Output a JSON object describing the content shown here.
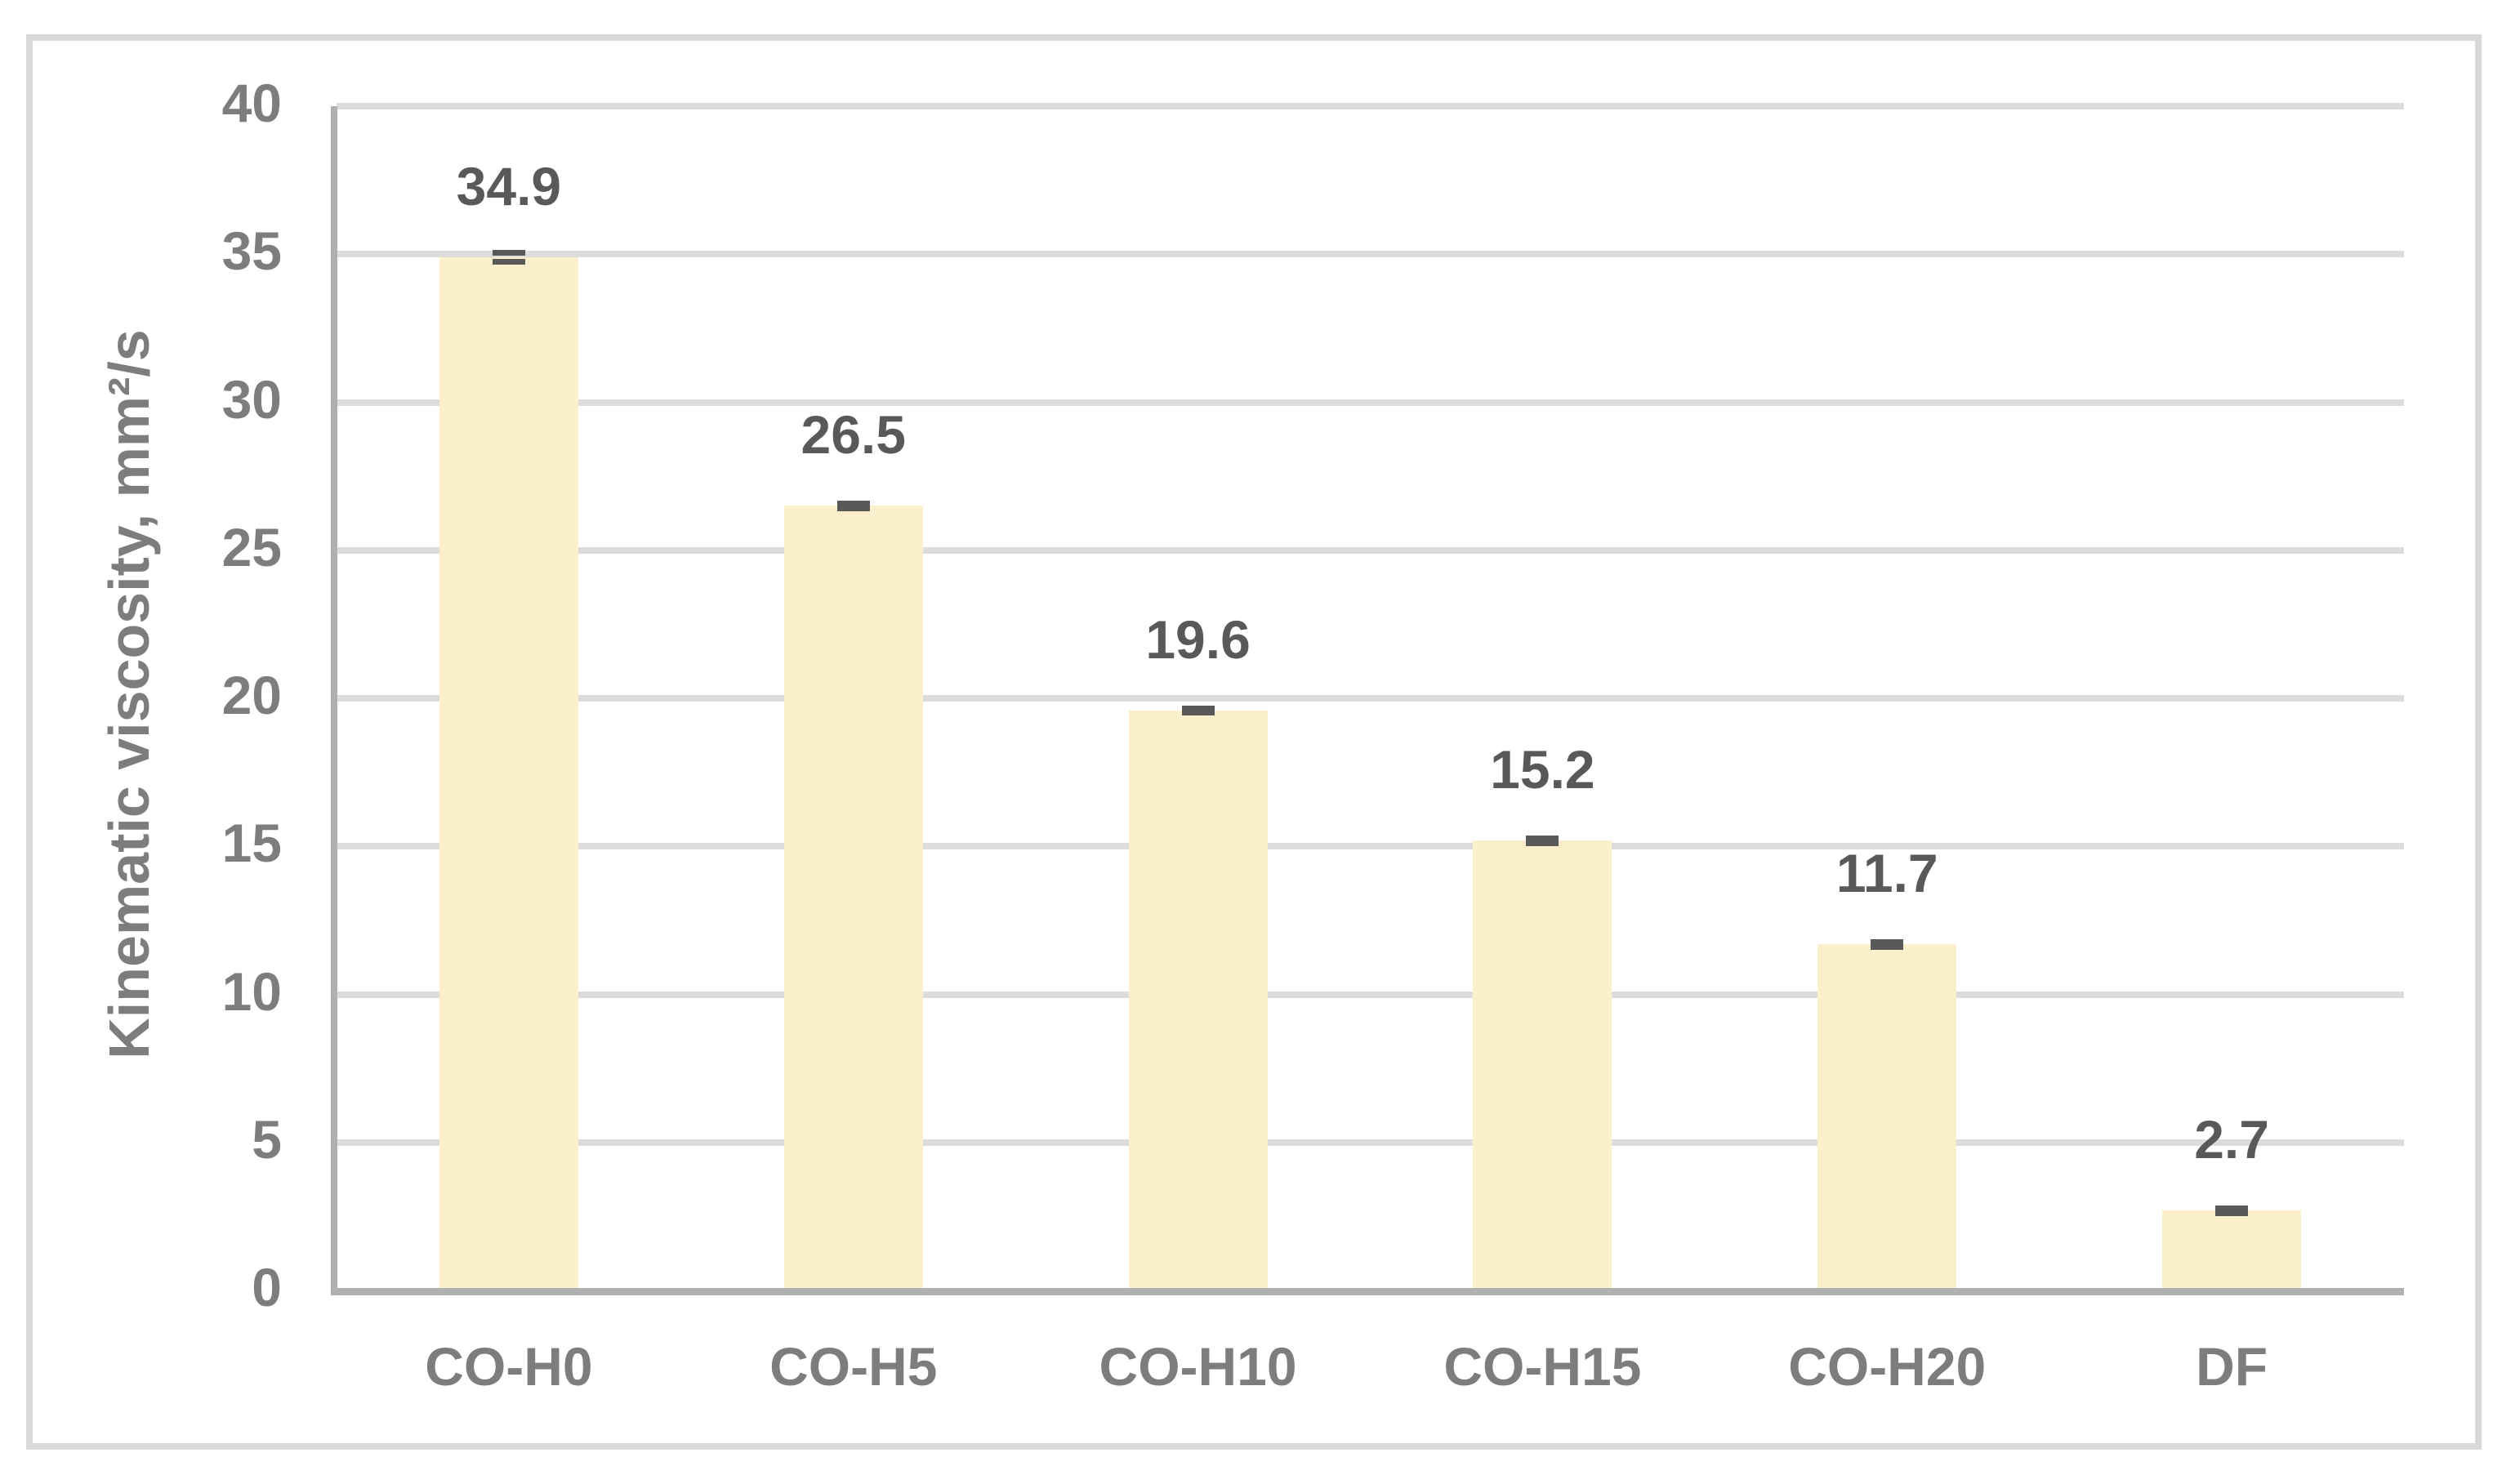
{
  "figure": {
    "background": "#FFFFFF",
    "border_color": "#D9D9D9"
  },
  "chart_data": {
    "type": "bar",
    "title": "",
    "categories": [
      "CO-H0",
      "CO-H5",
      "CO-H10",
      "CO-H15",
      "CO-H20",
      "DF"
    ],
    "values": [
      34.9,
      26.5,
      19.6,
      15.2,
      11.7,
      2.7
    ],
    "data_labels": [
      "34.9",
      "26.5",
      "19.6",
      "15.2",
      "11.7",
      "2.7"
    ],
    "errors": [
      0.15,
      0.08,
      0.08,
      0.08,
      0.08,
      0.08
    ],
    "series_name": "Kinematic viscosity",
    "xlabel": "",
    "ylabel": "Kinematic viscosity, mm²/s",
    "ylim": [
      0,
      40
    ],
    "ytick_step": 5,
    "yticks": [
      "0",
      "5",
      "10",
      "15",
      "20",
      "25",
      "30",
      "35",
      "40"
    ],
    "grid": "horizontal",
    "legend": "none",
    "colors": {
      "background": "#FFFFFF",
      "border_color": "#D9D9D9",
      "bar_fill": "#FCF0CC",
      "error_bar": "#595959",
      "gridline": "#DCDCDC",
      "axis_line": "#B0B0B0",
      "tick_label": "#7D7D7D",
      "category_label": "#7D7D7D",
      "data_label": "#595959",
      "axis_title": "#7D7D7D"
    }
  }
}
